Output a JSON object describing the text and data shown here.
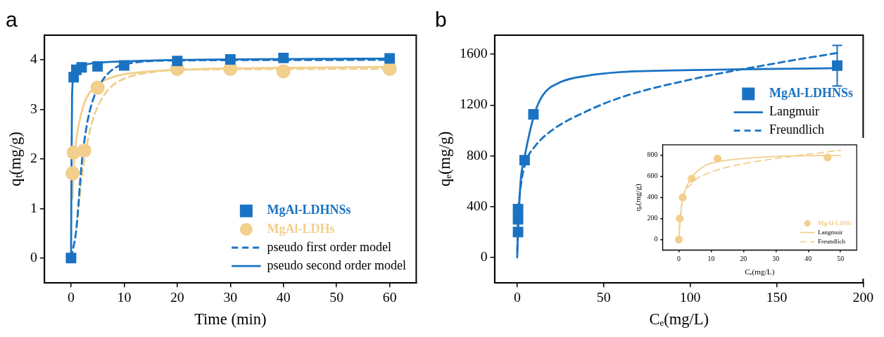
{
  "chart_data": [
    {
      "type": "scatter",
      "title": "a",
      "xlabel": "Time (min)",
      "ylabel": "qₜ(mg/g)",
      "xlim": [
        -5,
        65
      ],
      "xticks": [
        0,
        10,
        20,
        30,
        40,
        50,
        60
      ],
      "ylim": [
        -0.5,
        4.5
      ],
      "yticks": [
        0,
        1,
        2,
        3,
        4
      ],
      "legend": "bottom right",
      "series": [
        {
          "name": "MgAl-LDHNSs",
          "type": "scatter",
          "marker": "square",
          "color": "#1a73c2",
          "x": [
            0,
            0.5,
            1,
            2,
            5,
            10,
            20,
            30,
            40,
            60
          ],
          "values": [
            0,
            3.65,
            3.8,
            3.85,
            3.87,
            3.89,
            3.98,
            4.01,
            4.04,
            4.03
          ]
        },
        {
          "name": "MgAl-LDHs",
          "type": "scatter",
          "marker": "circle",
          "color": "#f2cf8c",
          "x": [
            0.3,
            0.5,
            2.5,
            5,
            20,
            30,
            40,
            60
          ],
          "values": [
            1.71,
            2.13,
            2.17,
            3.44,
            3.82,
            3.82,
            3.77,
            3.82
          ]
        },
        {
          "name": "pseudo first order model",
          "type": "line",
          "line_style": "dashed",
          "color": "#1a73c2",
          "x": [
            0,
            1,
            2,
            3,
            4,
            5,
            7,
            10,
            20,
            60
          ],
          "values": [
            0,
            0.58,
            1.9,
            2.7,
            3.15,
            3.42,
            3.73,
            3.91,
            3.99,
            4.0
          ]
        },
        {
          "name": "pseudo second order model",
          "type": "line",
          "line_style": "solid",
          "color": "#1a73c2",
          "x": [
            0,
            0.1,
            0.2,
            0.5,
            1,
            2,
            5,
            10,
            20,
            60
          ],
          "values": [
            0,
            2.0,
            3.3,
            3.65,
            3.8,
            3.88,
            3.94,
            3.97,
            4.0,
            4.03
          ]
        },
        {
          "type": "line",
          "line_style": "dashed",
          "color": "#f2cf8c",
          "x": [
            1,
            2,
            3,
            4,
            5,
            7,
            10,
            15,
            20,
            60
          ],
          "values": [
            0.6,
            1.6,
            2.3,
            2.75,
            3.05,
            3.4,
            3.62,
            3.75,
            3.8,
            3.82
          ]
        },
        {
          "type": "line",
          "line_style": "solid",
          "color": "#f2cf8c",
          "x": [
            0.3,
            0.5,
            1,
            2,
            3,
            5,
            7,
            10,
            20,
            40,
            60
          ],
          "values": [
            1.2,
            1.8,
            2.4,
            2.95,
            3.25,
            3.5,
            3.62,
            3.71,
            3.8,
            3.84,
            3.86
          ]
        }
      ]
    },
    {
      "type": "scatter",
      "title": "b",
      "xlabel": "Cₑ(mg/L)",
      "ylabel": "qₑ(mg/g)",
      "xlim": [
        -13,
        200
      ],
      "xticks": [
        0,
        50,
        100,
        150,
        200
      ],
      "ylim": [
        -200,
        1750
      ],
      "yticks": [
        0,
        400,
        800,
        1200,
        1600
      ],
      "legend": "top right",
      "series": [
        {
          "name": "MgAl-LDHNSs",
          "type": "scatter",
          "marker": "square",
          "color": "#1a73c2",
          "x": [
            0.5,
            0.5,
            0.5,
            4.3,
            9.4,
            185
          ],
          "values": [
            200,
            300,
            380,
            766,
            1127,
            1510
          ],
          "errors": [
            null,
            null,
            null,
            null,
            null,
            160
          ]
        },
        {
          "name": "Langmuir",
          "type": "line",
          "line_style": "solid",
          "color": "#1a73c2",
          "x": [
            0,
            0.5,
            2,
            4,
            10,
            15,
            25,
            40,
            60,
            100,
            150,
            185
          ],
          "values": [
            0,
            200,
            600,
            770,
            1130,
            1280,
            1380,
            1430,
            1460,
            1475,
            1485,
            1490
          ]
        },
        {
          "name": "Freundlich",
          "type": "line",
          "line_style": "dashed",
          "color": "#1a73c2",
          "x": [
            0.05,
            0.5,
            2,
            5,
            10,
            20,
            40,
            60,
            100,
            150,
            185
          ],
          "values": [
            50,
            300,
            550,
            750,
            870,
            1000,
            1150,
            1260,
            1400,
            1530,
            1610
          ]
        }
      ]
    },
    {
      "type": "scatter",
      "xlabel": "Cₑ(mg/L)",
      "ylabel": "qₑ(mg/g)",
      "xlim": [
        -5,
        55
      ],
      "xticks": [
        0,
        10,
        20,
        30,
        40,
        50
      ],
      "ylim": [
        -100,
        900
      ],
      "yticks": [
        0,
        200,
        400,
        600,
        800
      ],
      "legend": "bottom right",
      "series": [
        {
          "name": "MgAl-LDHs",
          "type": "scatter",
          "marker": "circle",
          "color": "#f2cf8c",
          "x": [
            0,
            0.3,
            1.2,
            4,
            12,
            46
          ],
          "values": [
            0,
            200,
            400,
            580,
            770,
            780
          ]
        },
        {
          "name": "Langmuir",
          "type": "line",
          "line_style": "solid",
          "color": "#f2cf8c",
          "x": [
            0,
            0.5,
            1,
            2,
            4,
            8,
            12,
            20,
            30,
            50
          ],
          "values": [
            0,
            200,
            350,
            470,
            590,
            700,
            740,
            770,
            790,
            800
          ]
        },
        {
          "name": "Freundlich",
          "type": "line",
          "line_style": "dashed",
          "color": "#f2cf8c",
          "x": [
            0.1,
            1,
            4,
            10,
            20,
            30,
            50
          ],
          "values": [
            100,
            350,
            530,
            640,
            720,
            770,
            850
          ]
        }
      ]
    }
  ]
}
